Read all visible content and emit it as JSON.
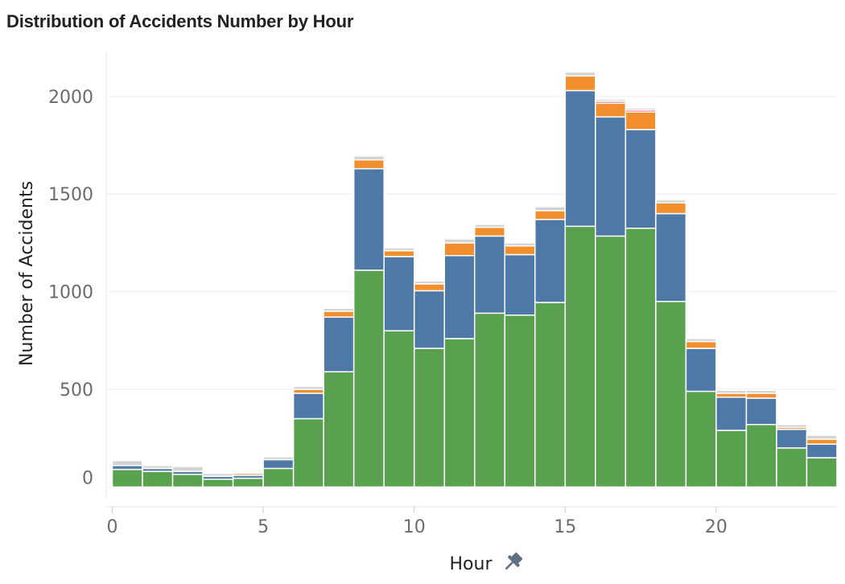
{
  "chart_data": {
    "type": "bar",
    "stacked": true,
    "title": "Distribution of Accidents Number by Hour",
    "xlabel": "Hour",
    "ylabel": "Number of Accidents",
    "xlim": [
      -0.2,
      24
    ],
    "ylim": [
      -60,
      2230
    ],
    "x_ticks": [
      0,
      5,
      10,
      15,
      20
    ],
    "y_ticks": [
      0,
      500,
      1000,
      1500,
      2000
    ],
    "grid": "horizontal",
    "x_icon": "pin-icon",
    "series_colors": [
      "#59a14f",
      "#4e79a7",
      "#f28e2b",
      "#e15759",
      "#d3d3d3"
    ],
    "bins": [
      {
        "x0": 0,
        "x1": 1,
        "values": [
          90,
          20,
          0,
          0,
          25
        ]
      },
      {
        "x0": 1,
        "x1": 2,
        "values": [
          80,
          15,
          0,
          0,
          15
        ]
      },
      {
        "x0": 2,
        "x1": 3,
        "values": [
          65,
          15,
          0,
          0,
          25
        ]
      },
      {
        "x0": 3,
        "x1": 4,
        "values": [
          40,
          15,
          0,
          0,
          15
        ]
      },
      {
        "x0": 4,
        "x1": 5,
        "values": [
          45,
          15,
          10,
          0,
          5
        ]
      },
      {
        "x0": 5,
        "x1": 6,
        "values": [
          95,
          45,
          0,
          0,
          15
        ]
      },
      {
        "x0": 6,
        "x1": 7,
        "values": [
          350,
          130,
          20,
          0,
          15
        ]
      },
      {
        "x0": 7,
        "x1": 8,
        "values": [
          590,
          280,
          30,
          0,
          15
        ]
      },
      {
        "x0": 8,
        "x1": 9,
        "values": [
          1110,
          520,
          45,
          0,
          20
        ]
      },
      {
        "x0": 9,
        "x1": 10,
        "values": [
          800,
          380,
          30,
          0,
          15
        ]
      },
      {
        "x0": 10,
        "x1": 11,
        "values": [
          710,
          295,
          35,
          0,
          15
        ]
      },
      {
        "x0": 11,
        "x1": 12,
        "values": [
          760,
          425,
          65,
          0,
          20
        ]
      },
      {
        "x0": 12,
        "x1": 13,
        "values": [
          890,
          395,
          45,
          0,
          15
        ]
      },
      {
        "x0": 13,
        "x1": 14,
        "values": [
          880,
          310,
          45,
          0,
          15
        ]
      },
      {
        "x0": 14,
        "x1": 15,
        "values": [
          945,
          425,
          45,
          0,
          20
        ]
      },
      {
        "x0": 15,
        "x1": 16,
        "values": [
          1335,
          695,
          75,
          0,
          20
        ]
      },
      {
        "x0": 16,
        "x1": 17,
        "values": [
          1285,
          610,
          70,
          10,
          10
        ]
      },
      {
        "x0": 17,
        "x1": 18,
        "values": [
          1325,
          505,
          90,
          10,
          10
        ]
      },
      {
        "x0": 18,
        "x1": 19,
        "values": [
          950,
          450,
          55,
          0,
          15
        ]
      },
      {
        "x0": 19,
        "x1": 20,
        "values": [
          490,
          220,
          35,
          0,
          15
        ]
      },
      {
        "x0": 20,
        "x1": 21,
        "values": [
          290,
          170,
          20,
          0,
          15
        ]
      },
      {
        "x0": 21,
        "x1": 22,
        "values": [
          320,
          135,
          25,
          0,
          15
        ]
      },
      {
        "x0": 22,
        "x1": 23,
        "values": [
          200,
          95,
          10,
          0,
          15
        ]
      },
      {
        "x0": 23,
        "x1": 24,
        "values": [
          150,
          70,
          25,
          0,
          20
        ]
      }
    ]
  }
}
